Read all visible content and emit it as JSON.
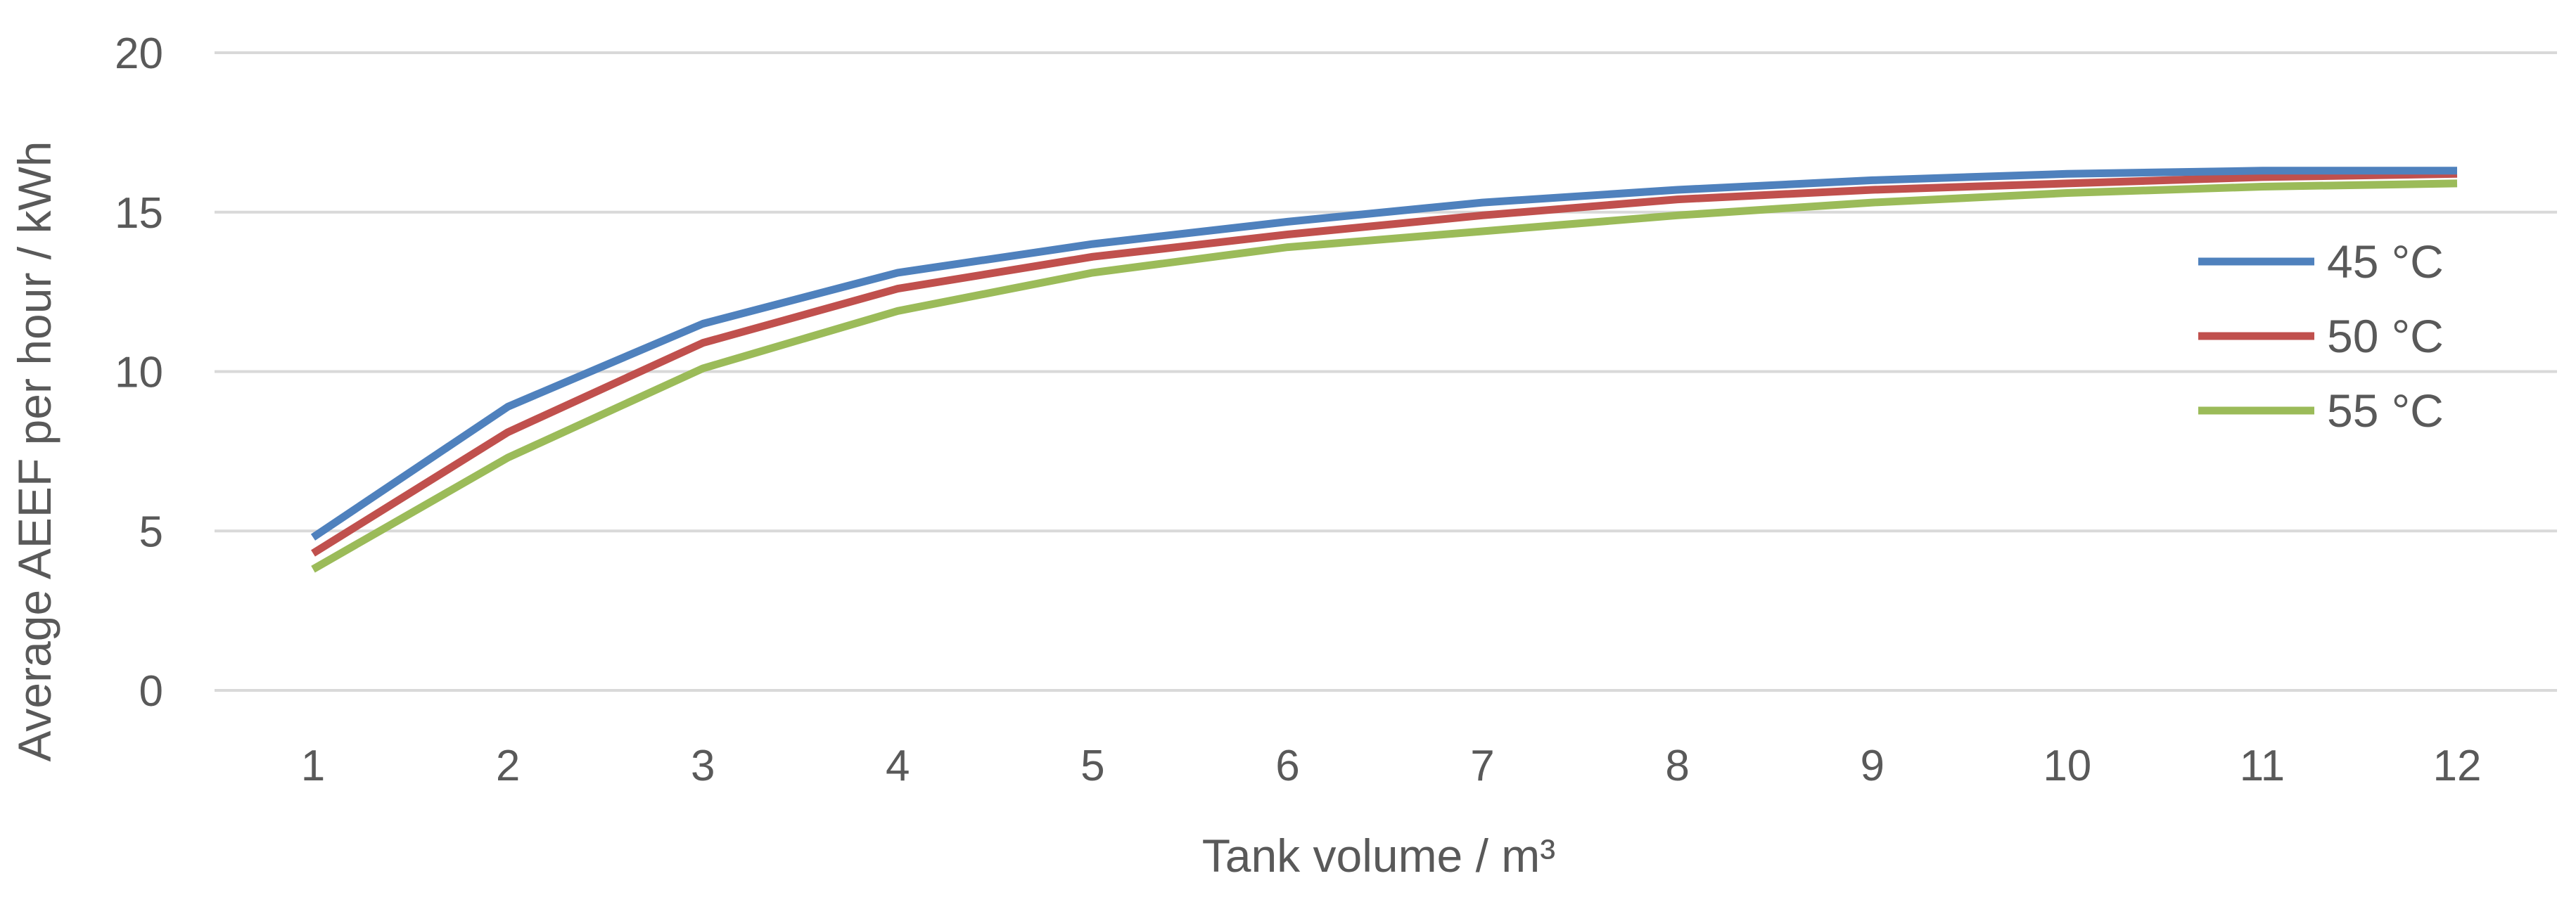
{
  "chart_data": {
    "type": "line",
    "title": "",
    "xlabel": "Tank volume / m³",
    "ylabel": "Average AEEF per hour / kWh",
    "categories": [
      "1",
      "2",
      "3",
      "4",
      "5",
      "6",
      "7",
      "8",
      "9",
      "10",
      "11",
      "12"
    ],
    "x": [
      1,
      2,
      3,
      4,
      5,
      6,
      7,
      8,
      9,
      10,
      11,
      12
    ],
    "ylim": [
      0,
      20
    ],
    "yticks": [
      0,
      5,
      10,
      15,
      20
    ],
    "grid": true,
    "legend_position": "right",
    "series": [
      {
        "name": "45 °C",
        "color": "#4f81bd",
        "values": [
          4.8,
          8.9,
          11.5,
          13.1,
          14.0,
          14.7,
          15.3,
          15.7,
          16.0,
          16.2,
          16.3,
          16.3
        ]
      },
      {
        "name": "50 °C",
        "color": "#c0504d",
        "values": [
          4.3,
          8.1,
          10.9,
          12.6,
          13.6,
          14.3,
          14.9,
          15.4,
          15.7,
          15.9,
          16.1,
          16.2
        ]
      },
      {
        "name": "55 °C",
        "color": "#9bbb59",
        "values": [
          3.8,
          7.3,
          10.1,
          11.9,
          13.1,
          13.9,
          14.4,
          14.9,
          15.3,
          15.6,
          15.8,
          15.9
        ]
      }
    ]
  }
}
